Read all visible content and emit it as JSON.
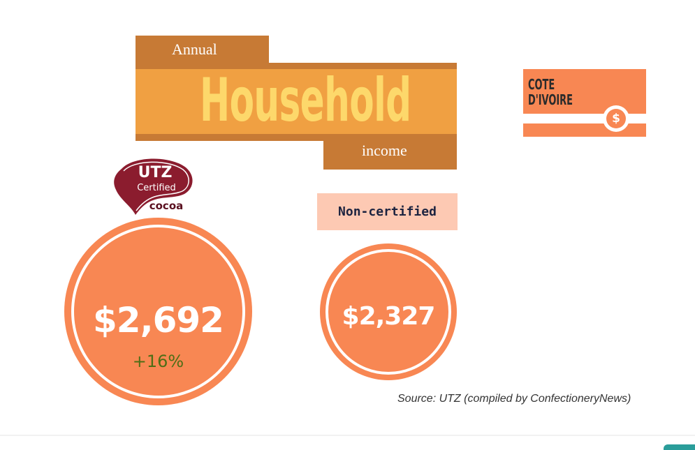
{
  "title": {
    "line1": "Annual",
    "line2": "Household",
    "line3": "income"
  },
  "country": {
    "name": "COTE D'IVOIRE",
    "icon": "dollar-coin-icon",
    "coin_symbol": "$"
  },
  "certified": {
    "logo": {
      "line1": "UTZ",
      "line2": "Certified",
      "line3": "cocoa",
      "color": "#8b1c2e"
    },
    "amount": "$2,692",
    "change": "+16%",
    "change_color": "#4e6e16"
  },
  "non_certified": {
    "label": "Non-certified",
    "amount": "$2,327"
  },
  "source": "Source: UTZ (compiled by ConfectioneryNews)",
  "colors": {
    "title_dark": "#c77a35",
    "title_light": "#f0a042",
    "title_text": "#fdd86b",
    "circle": "#f88753",
    "label_bg": "#fdc9b3"
  }
}
